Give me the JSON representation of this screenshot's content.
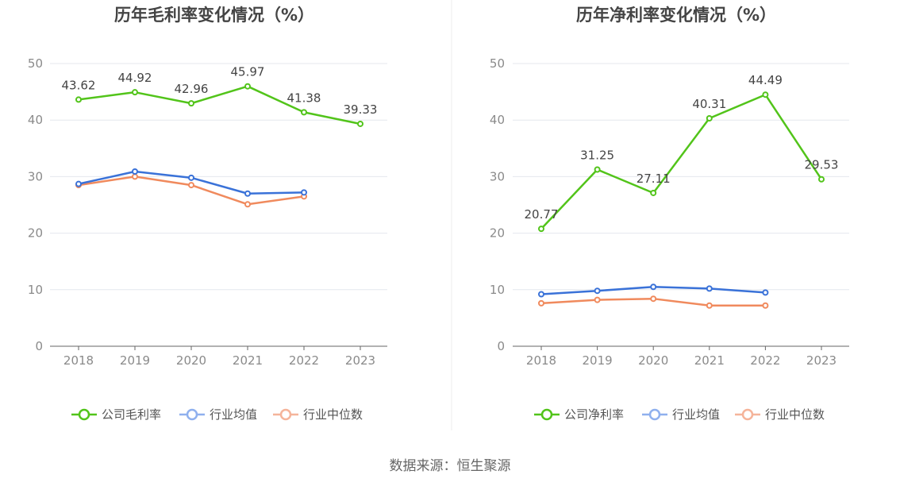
{
  "source_text": "数据来源：恒生聚源",
  "colors": {
    "company": "#52c41a",
    "avg": "#3a72d8",
    "median": "#f08a5d",
    "legend_avg": "#8fb0ee",
    "legend_median": "#f5b49a",
    "grid": "#e4e7ee",
    "axis": "#666666"
  },
  "chart_data": [
    {
      "type": "line",
      "title": "历年毛利率变化情况（%）",
      "categories": [
        "2018",
        "2019",
        "2020",
        "2021",
        "2022",
        "2023"
      ],
      "ylim": [
        0,
        50
      ],
      "yticks": [
        "0",
        "10",
        "20",
        "30",
        "40",
        "50"
      ],
      "series": [
        {
          "name": "公司毛利率",
          "key": "company",
          "values": [
            43.62,
            44.92,
            42.96,
            45.97,
            41.38,
            39.33
          ],
          "labels": [
            "43.62",
            "44.92",
            "42.96",
            "45.97",
            "41.38",
            "39.33"
          ]
        },
        {
          "name": "行业均值",
          "key": "avg",
          "values": [
            28.7,
            30.9,
            29.8,
            27.0,
            27.2,
            null
          ]
        },
        {
          "name": "行业中位数",
          "key": "median",
          "values": [
            28.5,
            30.0,
            28.5,
            25.1,
            26.5,
            null
          ]
        }
      ]
    },
    {
      "type": "line",
      "title": "历年净利率变化情况（%）",
      "categories": [
        "2018",
        "2019",
        "2020",
        "2021",
        "2022",
        "2023"
      ],
      "ylim": [
        0,
        50
      ],
      "yticks": [
        "0",
        "10",
        "20",
        "30",
        "40",
        "50"
      ],
      "series": [
        {
          "name": "公司净利率",
          "key": "company",
          "values": [
            20.77,
            31.25,
            27.11,
            40.31,
            44.49,
            29.53
          ],
          "labels": [
            "20.77",
            "31.25",
            "27.11",
            "40.31",
            "44.49",
            "29.53"
          ]
        },
        {
          "name": "行业均值",
          "key": "avg",
          "values": [
            9.2,
            9.8,
            10.5,
            10.2,
            9.5,
            null
          ]
        },
        {
          "name": "行业中位数",
          "key": "median",
          "values": [
            7.6,
            8.2,
            8.4,
            7.2,
            7.2,
            null
          ]
        }
      ]
    }
  ]
}
